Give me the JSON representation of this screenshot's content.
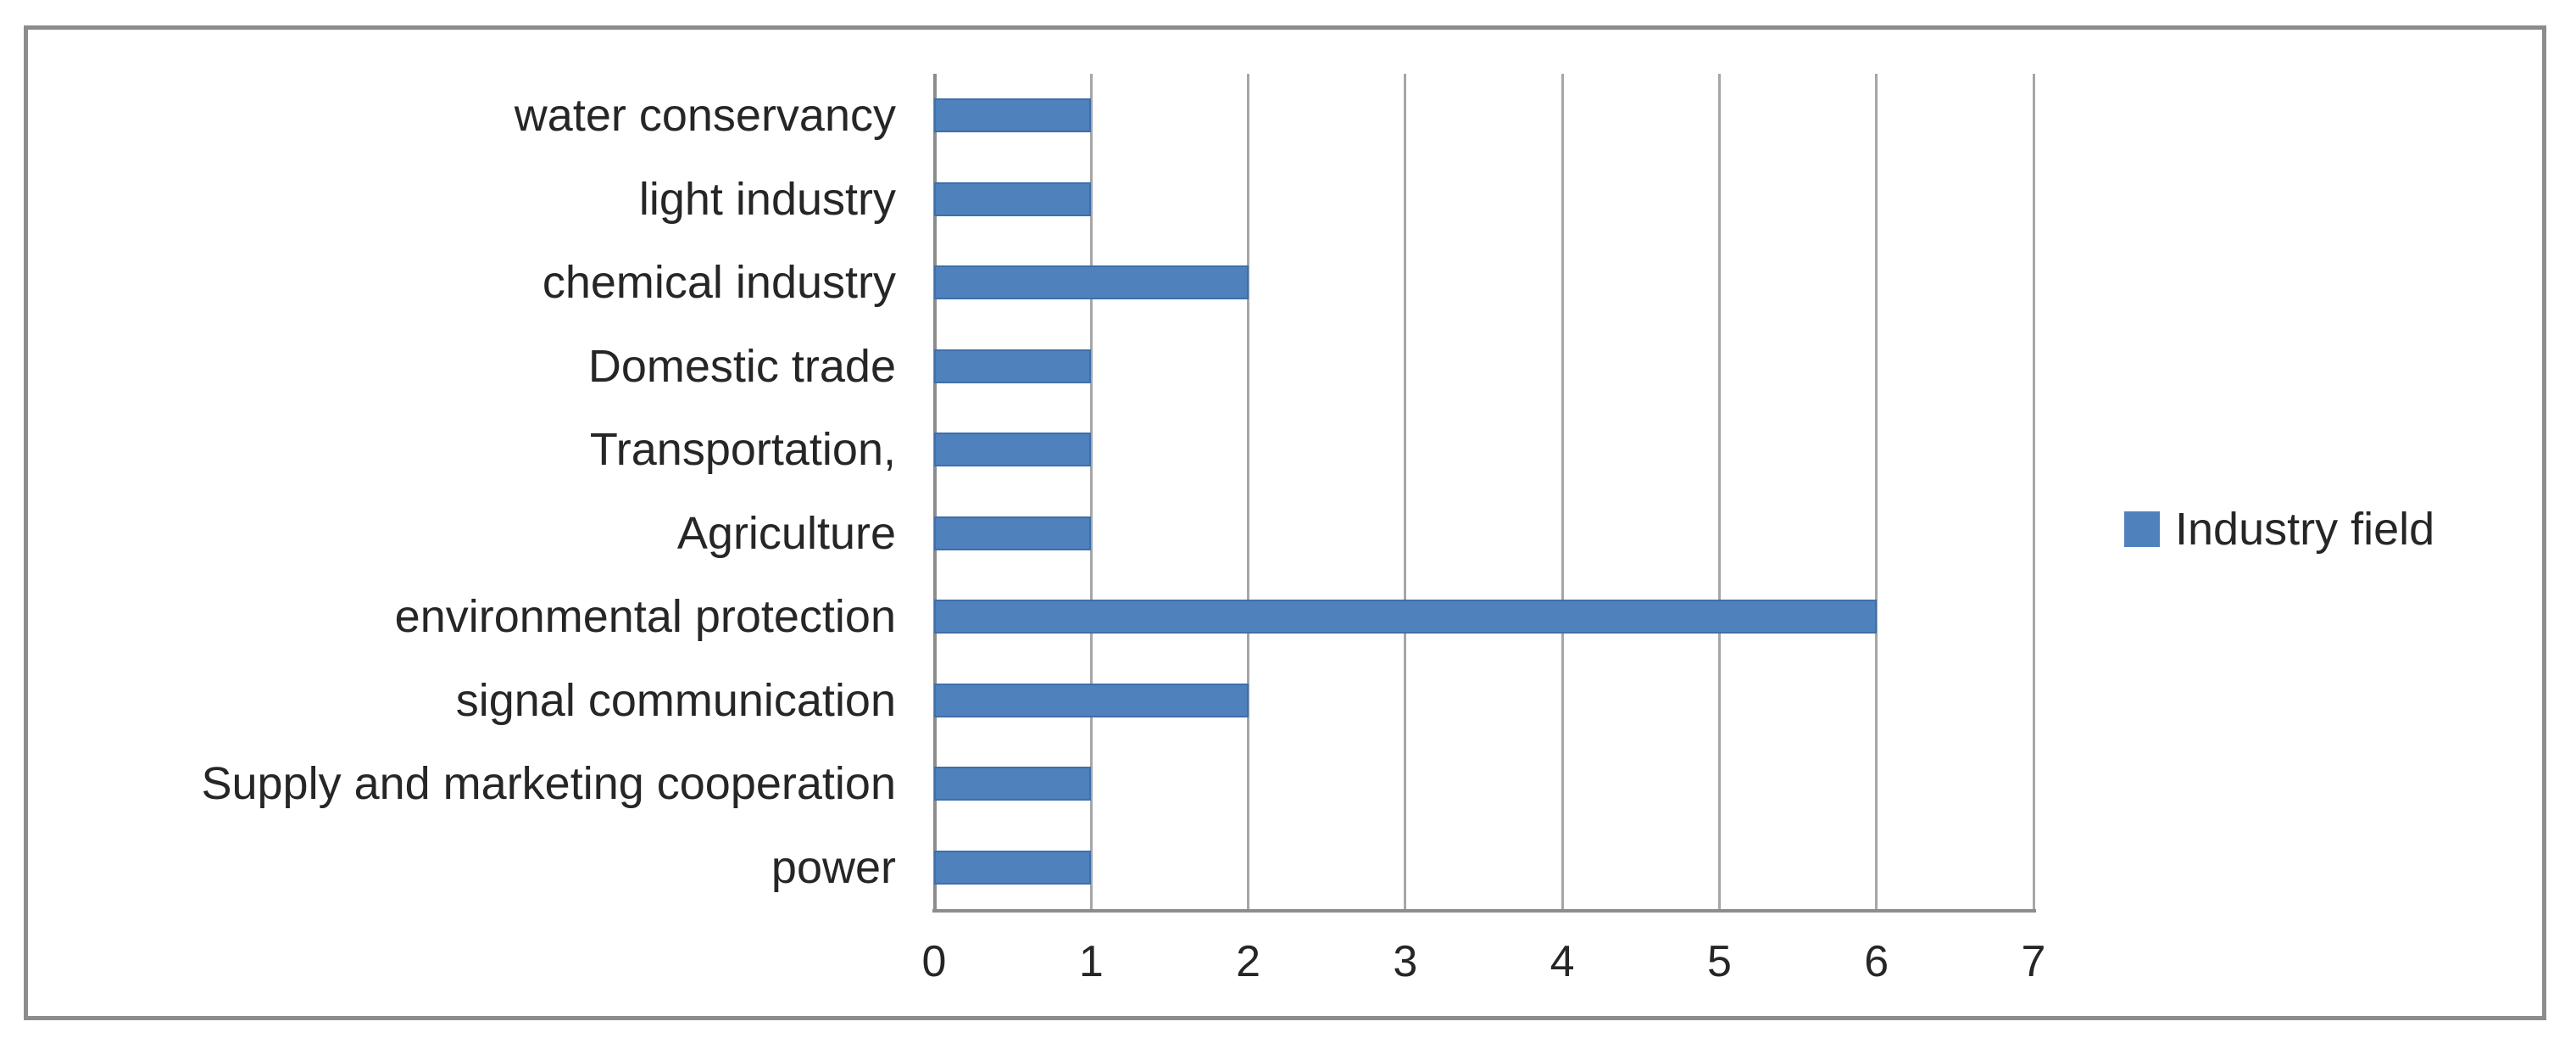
{
  "window": {
    "background": "#FFFFFF",
    "frame_border_color": "#8C8C8C"
  },
  "legend": {
    "label": "Industry field",
    "swatch_color": "#4F81BD"
  },
  "chart_data": {
    "type": "bar",
    "orientation": "horizontal",
    "title": "",
    "xlabel": "",
    "ylabel": "",
    "categories": [
      "water conservancy",
      "light industry",
      "chemical industry",
      "Domestic trade",
      "Transportation,",
      "Agriculture",
      "environmental protection",
      "signal communication",
      "Supply and marketing cooperation",
      "power"
    ],
    "series": [
      {
        "name": "Industry field",
        "values": [
          1,
          1,
          2,
          1,
          1,
          1,
          6,
          2,
          1,
          1
        ]
      }
    ],
    "xlim": [
      0,
      7
    ],
    "x_ticks": [
      "0",
      "1",
      "2",
      "3",
      "4",
      "5",
      "6",
      "7"
    ],
    "grid": true,
    "legend_position": "right-middle",
    "colors": {
      "bar_fill": "#4F81BD",
      "bar_border": "#3E6FA8",
      "gridline": "#A6A6A6",
      "axis_line": "#8C8C8C",
      "text": "#262626"
    }
  }
}
